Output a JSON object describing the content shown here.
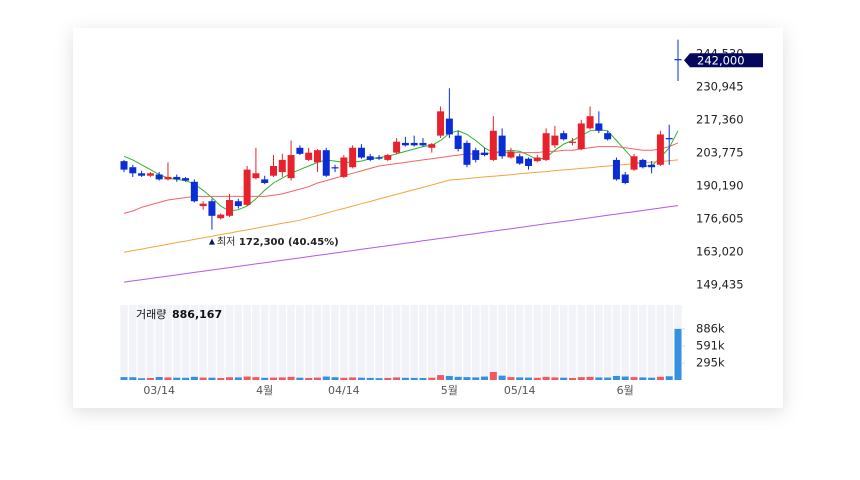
{
  "chart_data": {
    "type": "candlestick",
    "categories": [
      null,
      null,
      null,
      null,
      "03/14",
      null,
      null,
      null,
      null,
      null,
      null,
      null,
      null,
      null,
      null,
      null,
      "4월",
      null,
      null,
      null,
      null,
      null,
      null,
      null,
      null,
      "04/14",
      null,
      null,
      null,
      null,
      null,
      null,
      null,
      null,
      null,
      null,
      null,
      "5월",
      null,
      null,
      null,
      null,
      null,
      null,
      null,
      "05/14",
      null,
      null,
      null,
      null,
      null,
      null,
      null,
      null,
      null,
      null,
      null,
      "6월",
      null,
      null,
      null,
      null,
      null,
      null
    ],
    "open": [
      200500,
      198000,
      195500,
      194500,
      195000,
      193000,
      194000,
      193500,
      192000,
      182000,
      184000,
      177000,
      178000,
      184000,
      182500,
      193500,
      193000,
      194500,
      196000,
      193500,
      206000,
      201000,
      200000,
      205000,
      198000,
      194000,
      198000,
      206000,
      202500,
      202000,
      201000,
      204000,
      208000,
      208000,
      208000,
      206000,
      211000,
      218000,
      211000,
      208000,
      205000,
      204000,
      201000,
      211000,
      202000,
      202500,
      201500,
      200500,
      201000,
      207000,
      212000,
      208000,
      205500,
      214000,
      216000,
      212000,
      201000,
      195000,
      197000,
      201000,
      199000,
      199000,
      210000,
      242500
    ],
    "high": [
      201000,
      199000,
      196500,
      196000,
      196000,
      200000,
      195000,
      194000,
      193000,
      184000,
      185000,
      179000,
      187000,
      185000,
      198500,
      206000,
      194500,
      203000,
      203500,
      209000,
      207000,
      206000,
      205500,
      206000,
      199000,
      203000,
      207000,
      207500,
      203500,
      203000,
      203500,
      210000,
      210500,
      211000,
      210000,
      208000,
      223000,
      230500,
      213000,
      209000,
      206000,
      206000,
      219000,
      214000,
      206000,
      203500,
      202000,
      203000,
      214000,
      215000,
      213000,
      210000,
      217500,
      223000,
      221000,
      213000,
      202000,
      196000,
      203500,
      201500,
      200500,
      213000,
      215500,
      250500
    ],
    "low": [
      196000,
      194000,
      194000,
      194000,
      192500,
      192500,
      192000,
      192000,
      183500,
      180500,
      172300,
      176500,
      177500,
      181000,
      182000,
      193000,
      191000,
      194000,
      194000,
      192500,
      203000,
      200500,
      196000,
      194000,
      196000,
      193500,
      197500,
      201500,
      200500,
      201000,
      200500,
      203500,
      206500,
      206500,
      206500,
      204000,
      210000,
      210000,
      204500,
      198000,
      200000,
      202500,
      200500,
      201500,
      201500,
      199000,
      197000,
      200000,
      200500,
      206000,
      209000,
      207000,
      205000,
      213500,
      212000,
      209000,
      192500,
      191000,
      196500,
      197500,
      195500,
      198500,
      199000,
      233500
    ],
    "close": [
      197000,
      195500,
      194500,
      195500,
      193000,
      194000,
      193000,
      192500,
      184000,
      183000,
      178000,
      178500,
      184500,
      182000,
      197000,
      195500,
      191500,
      198500,
      201000,
      203000,
      203500,
      204000,
      205000,
      194500,
      197500,
      202000,
      206000,
      202000,
      201000,
      201500,
      203000,
      208500,
      207000,
      207000,
      207000,
      207500,
      221000,
      211500,
      205500,
      199000,
      201000,
      203000,
      213000,
      202500,
      204500,
      199500,
      198500,
      202000,
      212000,
      211000,
      209500,
      208500,
      216000,
      219000,
      213000,
      209500,
      193000,
      191500,
      202500,
      198000,
      198000,
      211500,
      209500,
      242000
    ],
    "up_color": "#e8222d",
    "down_color": "#0a2dd6",
    "ylim": [
      145000,
      252000
    ],
    "yticks": [
      {
        "value": 149435,
        "label": "149,435"
      },
      {
        "value": 163020,
        "label": "163,020"
      },
      {
        "value": 176605,
        "label": "176,605"
      },
      {
        "value": 190190,
        "label": "190,190"
      },
      {
        "value": 203775,
        "label": "203,775"
      },
      {
        "value": 217360,
        "label": "217,360"
      },
      {
        "value": 230945,
        "label": "230,945"
      },
      {
        "value": 244530,
        "label": "244,530"
      }
    ],
    "grid": true,
    "moving_averages": [
      {
        "color": "#2db52d",
        "values": [
          202500,
          201000,
          199000,
          197000,
          195000,
          193500,
          193000,
          192500,
          191000,
          188500,
          185500,
          182000,
          180000,
          180500,
          182000,
          185000,
          188500,
          191500,
          193500,
          195500,
          197000,
          198500,
          200000,
          201000,
          200500,
          200000,
          200000,
          200500,
          201500,
          202000,
          202500,
          203500,
          204500,
          205500,
          206500,
          207000,
          209000,
          212000,
          213000,
          211500,
          209000,
          206000,
          204000,
          204500,
          205000,
          204500,
          203000,
          201000,
          202000,
          205000,
          207500,
          209000,
          211000,
          213000,
          213500,
          213000,
          209000,
          205000,
          201000,
          198500,
          198500,
          202000,
          206000,
          213000
        ]
      },
      {
        "color": "#f26464",
        "values": [
          179000,
          180000,
          181500,
          182500,
          183500,
          184500,
          185000,
          185500,
          186000,
          186000,
          186000,
          186000,
          186000,
          186000,
          186000,
          186000,
          186000,
          186500,
          187000,
          188000,
          189000,
          190000,
          191500,
          192500,
          193500,
          194500,
          195500,
          196500,
          197500,
          198500,
          199000,
          199500,
          200000,
          200500,
          201000,
          201500,
          202000,
          202500,
          203000,
          203500,
          203500,
          203500,
          204000,
          204000,
          204000,
          204000,
          204000,
          204000,
          204500,
          204500,
          205000,
          205000,
          205500,
          206000,
          206500,
          206500,
          206500,
          206000,
          205500,
          205000,
          205000,
          205500,
          206500,
          208000
        ]
      },
      {
        "color": "#f3a53e",
        "values": [
          163000,
          163700,
          164300,
          165000,
          165600,
          166300,
          167000,
          167600,
          168300,
          168900,
          169600,
          170300,
          170900,
          171600,
          172200,
          172900,
          173600,
          174200,
          174900,
          175500,
          176200,
          177200,
          178100,
          179100,
          180100,
          181000,
          182000,
          183000,
          183900,
          184900,
          185900,
          186800,
          187800,
          188800,
          189700,
          190700,
          191700,
          192700,
          193000,
          193300,
          193700,
          194000,
          194300,
          194600,
          194900,
          195300,
          195600,
          195900,
          196200,
          196600,
          196900,
          197200,
          197500,
          197800,
          198200,
          198500,
          198800,
          199100,
          199400,
          199800,
          200100,
          200400,
          200700,
          201000
        ]
      },
      {
        "color": "#b45ae8",
        "values": [
          150700,
          151200,
          151700,
          152200,
          152700,
          153200,
          153700,
          154200,
          154700,
          155200,
          155700,
          156200,
          156700,
          157200,
          157700,
          158200,
          158700,
          159200,
          159700,
          160200,
          160700,
          161200,
          161700,
          162200,
          162700,
          163200,
          163700,
          164200,
          164700,
          165200,
          165700,
          166200,
          166700,
          167200,
          167700,
          168200,
          168700,
          169200,
          169700,
          170200,
          170700,
          171200,
          171700,
          172200,
          172700,
          173200,
          173700,
          174200,
          174700,
          175200,
          175700,
          176200,
          176700,
          177200,
          177700,
          178200,
          178700,
          179200,
          179700,
          180200,
          180700,
          181200,
          181700,
          182200
        ]
      }
    ],
    "current_price": {
      "value": 242000,
      "label": "242,000"
    },
    "low_marker": {
      "value": 172300,
      "label": "최저",
      "value_label": "172,300 (40.45%)"
    },
    "volume": {
      "title": "거래량",
      "latest_label": "886,167",
      "up_color": "#ef5a60",
      "down_color": "#3590e2",
      "values": [
        50000,
        48000,
        30000,
        35000,
        52000,
        45000,
        40000,
        38000,
        55000,
        42000,
        40000,
        35000,
        48000,
        45000,
        60000,
        50000,
        38000,
        42000,
        45000,
        55000,
        40000,
        35000,
        42000,
        60000,
        48000,
        38000,
        45000,
        40000,
        36000,
        32000,
        35000,
        45000,
        38000,
        36000,
        34000,
        40000,
        85000,
        70000,
        55000,
        50000,
        45000,
        60000,
        140000,
        75000,
        50000,
        45000,
        42000,
        38000,
        55000,
        45000,
        40000,
        35000,
        50000,
        55000,
        45000,
        42000,
        70000,
        60000,
        50000,
        45000,
        40000,
        55000,
        65000,
        886167
      ],
      "ylim": [
        0,
        1300000
      ],
      "yticks": [
        {
          "value": 295000,
          "label": "295k"
        },
        {
          "value": 591000,
          "label": "591k"
        },
        {
          "value": 886000,
          "label": "886k"
        }
      ]
    }
  }
}
